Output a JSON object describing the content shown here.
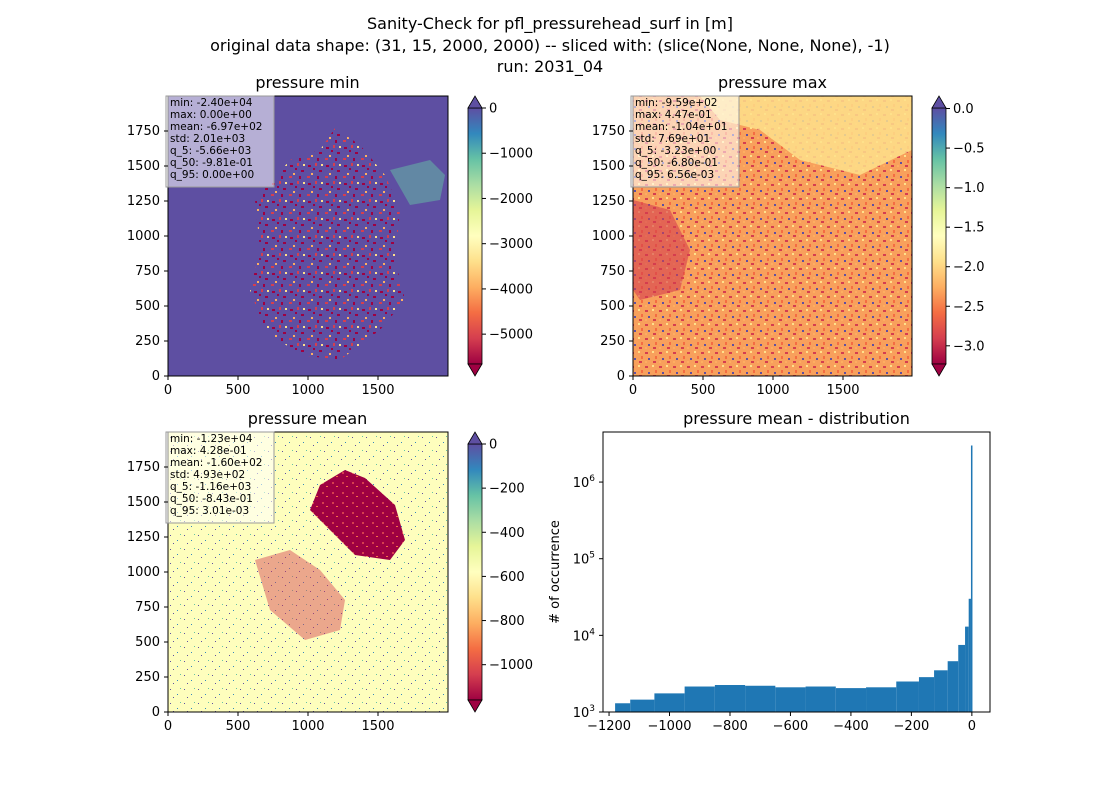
{
  "suptitle": {
    "line1": "Sanity-Check for pfl_pressurehead_surf in [m]",
    "line2": "original data shape: (31, 15, 2000, 2000) -- sliced with: (slice(None, None, None), -1)",
    "line3": "run: 2031_04"
  },
  "colors": {
    "spectral": [
      "#9e0142",
      "#d53e4f",
      "#f46d43",
      "#fdae61",
      "#fee08b",
      "#ffffbf",
      "#e6f598",
      "#abdda4",
      "#66c2a5",
      "#3288bd",
      "#5e4fa2"
    ],
    "hist_bar": "#1f77b4"
  },
  "panels": [
    {
      "title": "pressure min",
      "stats": [
        "min: -2.40e+04",
        "max: 0.00e+00",
        "mean: -6.97e+02",
        "std: 2.01e+03",
        "q_5: -5.66e+03",
        "q_50: -9.81e-01",
        "q_95: 0.00e+00"
      ],
      "xticks": [
        "0",
        "500",
        "1000",
        "1500"
      ],
      "yticks": [
        "0",
        "250",
        "500",
        "750",
        "1000",
        "1250",
        "1500",
        "1750"
      ],
      "colorbar": {
        "vmin": -5660,
        "vmax": 0,
        "ticks": [
          "0",
          "−1000",
          "−2000",
          "−3000",
          "−4000",
          "−5000"
        ],
        "tick_values": [
          0,
          -1000,
          -2000,
          -3000,
          -4000,
          -5000
        ],
        "extend": "both",
        "background": "#5e4fa2"
      }
    },
    {
      "title": "pressure max",
      "stats": [
        "min: -9.59e+02",
        "max: 4.47e-01",
        "mean: -1.04e+01",
        "std: 7.69e+01",
        "q_5: -3.23e+00",
        "q_50: -6.80e-01",
        "q_95: 6.56e-03"
      ],
      "xticks": [
        "0",
        "500",
        "1000",
        "1500"
      ],
      "yticks": [
        "0",
        "250",
        "500",
        "750",
        "1000",
        "1250",
        "1500",
        "1750"
      ],
      "colorbar": {
        "vmin": -3.23,
        "vmax": 0.00656,
        "ticks": [
          "0.0",
          "−0.5",
          "−1.0",
          "−1.5",
          "−2.0",
          "−2.5",
          "−3.0"
        ],
        "tick_values": [
          0,
          -0.5,
          -1.0,
          -1.5,
          -2.0,
          -2.5,
          -3.0
        ],
        "extend": "both",
        "background": "#f8a05c"
      }
    },
    {
      "title": "pressure mean",
      "stats": [
        "min: -1.23e+04",
        "max: 4.28e-01",
        "mean: -1.60e+02",
        "std: 4.93e+02",
        "q_5: -1.16e+03",
        "q_50: -8.43e-01",
        "q_95: 3.01e-03"
      ],
      "xticks": [
        "0",
        "500",
        "1000",
        "1500"
      ],
      "yticks": [
        "0",
        "250",
        "500",
        "750",
        "1000",
        "1250",
        "1500",
        "1750"
      ],
      "colorbar": {
        "vmin": -1160,
        "vmax": 0.00301,
        "ticks": [
          "0",
          "−200",
          "−400",
          "−600",
          "−800",
          "−1000"
        ],
        "tick_values": [
          0,
          -200,
          -400,
          -600,
          -800,
          -1000
        ],
        "extend": "both",
        "background": "#fefebd"
      }
    }
  ],
  "chart_data": {
    "type": "bar",
    "title": "pressure mean - distribution",
    "xlabel": "",
    "ylabel": "# of occurrence",
    "yscale": "log",
    "xlim": [
      -1220,
      60
    ],
    "ylim": [
      1000,
      4500000
    ],
    "xticks": [
      "−1200",
      "−1000",
      "−800",
      "−600",
      "−400",
      "−200",
      "0"
    ],
    "xtick_values": [
      -1200,
      -1000,
      -800,
      -600,
      -400,
      -200,
      0
    ],
    "ytick_exps": [
      "3",
      "4",
      "5",
      "6"
    ],
    "ytick_values": [
      1000,
      10000,
      100000,
      1000000
    ],
    "bins": [
      {
        "x": -1160,
        "count": 1300
      },
      {
        "x": -1100,
        "count": 1450
      },
      {
        "x": -1000,
        "count": 1750
      },
      {
        "x": -900,
        "count": 2150
      },
      {
        "x": -800,
        "count": 2250
      },
      {
        "x": -700,
        "count": 2200
      },
      {
        "x": -600,
        "count": 2100
      },
      {
        "x": -500,
        "count": 2150
      },
      {
        "x": -400,
        "count": 2050
      },
      {
        "x": -300,
        "count": 2100
      },
      {
        "x": -200,
        "count": 2500
      },
      {
        "x": -150,
        "count": 2850
      },
      {
        "x": -100,
        "count": 3500
      },
      {
        "x": -60,
        "count": 4600
      },
      {
        "x": -30,
        "count": 7500
      },
      {
        "x": -15,
        "count": 13000
      },
      {
        "x": -6,
        "count": 30000
      },
      {
        "x": 0,
        "count": 3000000
      }
    ]
  }
}
